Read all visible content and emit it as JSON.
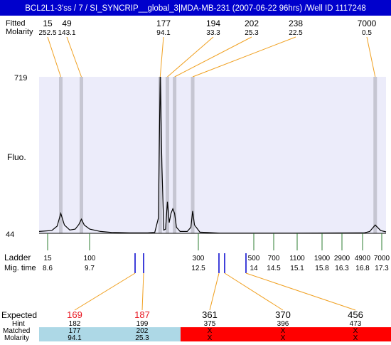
{
  "header": {
    "title": "BCL2L1-3'ss / 7 / SI_SYNCRIP__global_3|MDA-MB-231 (2007-06-22 96hrs) /Well ID 1117248",
    "bg": "#0000cc",
    "fg": "#ffffff"
  },
  "top_labels": {
    "row1": "Fitted",
    "row2": "Molarity"
  },
  "peaks": [
    {
      "size": "15",
      "molarity": "252.5",
      "mig": 8.6
    },
    {
      "size": "49",
      "molarity": "143.1",
      "mig": 9.17
    },
    {
      "size": "177",
      "molarity": "94.1",
      "mig": 11.35
    },
    {
      "size": "194",
      "molarity": "33.3",
      "mig": 11.55
    },
    {
      "size": "202",
      "molarity": "25.3",
      "mig": 11.75
    },
    {
      "size": "238",
      "molarity": "22.5",
      "mig": 12.25
    },
    {
      "size": "7000",
      "molarity": "0.5",
      "mig": 17.3
    }
  ],
  "axis": {
    "y_max": "719",
    "y_min": "44",
    "y_title": "Fluo."
  },
  "ladder": {
    "label": "Ladder",
    "mig_label": "Mig. time",
    "marks": [
      {
        "size": "15",
        "mig": "8.6"
      },
      {
        "size": "100",
        "mig": "9.7"
      },
      {
        "size": "300",
        "mig": "12.5"
      },
      {
        "size": "500",
        "mig": "14"
      },
      {
        "size": "700",
        "mig": "14.5"
      },
      {
        "size": "1100",
        "mig": "15.1"
      },
      {
        "size": "1900",
        "mig": "15.8"
      },
      {
        "size": "2900",
        "mig": "16.3"
      },
      {
        "size": "4900",
        "mig": "16.8"
      },
      {
        "size": "7000",
        "mig": "17.3"
      }
    ]
  },
  "bottom": {
    "expected_label": "Expected",
    "hint_label": "Hint",
    "matched_label": "Matched",
    "molarity_label": "Molarity",
    "matched_color": "#add8e6",
    "unmatched_color": "#ff0000",
    "columns": [
      {
        "expected": "169",
        "hint": "182",
        "matched": "177",
        "molarity": "94.1",
        "status": "matched"
      },
      {
        "expected": "187",
        "hint": "199",
        "matched": "202",
        "molarity": "25.3",
        "status": "matched"
      },
      {
        "expected": "361",
        "hint": "375",
        "matched": "X",
        "molarity": "X",
        "status": "unmatched"
      },
      {
        "expected": "370",
        "hint": "396",
        "matched": "X",
        "molarity": "X",
        "status": "unmatched"
      },
      {
        "expected": "456",
        "hint": "473",
        "matched": "X",
        "molarity": "X",
        "status": "unmatched"
      }
    ]
  },
  "chart_data": {
    "type": "line",
    "ylim": [
      44,
      719
    ],
    "xlim": [
      8.0,
      17.6
    ],
    "x_unit": "mig. time",
    "series": [
      {
        "x": [
          8.0,
          8.35,
          8.5,
          8.6,
          8.7,
          8.85,
          9.0,
          9.1,
          9.17,
          9.25,
          9.4,
          9.7,
          10.0,
          10.5,
          11.0,
          11.2,
          11.3,
          11.35,
          11.4,
          11.45,
          11.5,
          11.55,
          11.6,
          11.65,
          11.7,
          11.75,
          11.8,
          11.9,
          12.1,
          12.2,
          12.25,
          12.3,
          12.45,
          13.0,
          15.0,
          17.0,
          17.15,
          17.3,
          17.45,
          17.6
        ],
        "y": [
          52,
          56,
          75,
          130,
          80,
          58,
          62,
          82,
          105,
          80,
          62,
          52,
          48,
          46,
          46,
          48,
          110,
          719,
          330,
          58,
          62,
          180,
          90,
          130,
          150,
          130,
          70,
          52,
          52,
          70,
          140,
          80,
          49,
          45,
          45,
          46,
          52,
          80,
          56,
          50
        ]
      }
    ]
  }
}
